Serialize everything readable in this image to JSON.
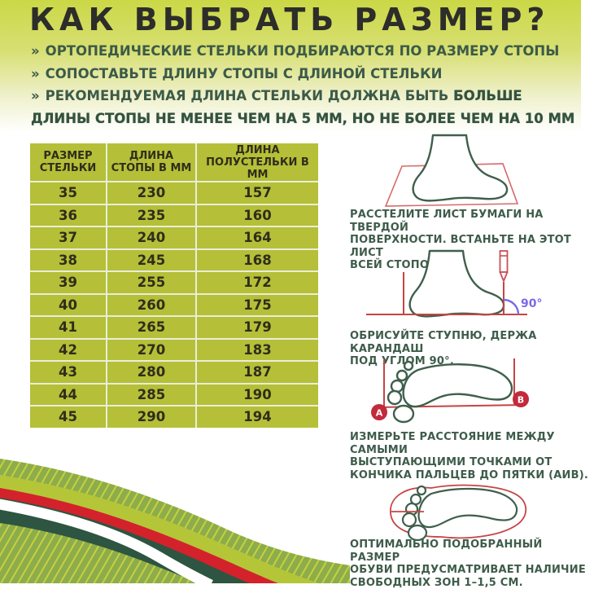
{
  "title": "КАК ВЫБРАТЬ РАЗМЕР?",
  "bullets": [
    {
      "marker": "»",
      "text": "ОРТОПЕДИЧЕСКИЕ СТЕЛЬКИ ПОДБИРАЮТСЯ ПО РАЗМЕРУ СТОПЫ",
      "bold": ""
    },
    {
      "marker": "»",
      "text": "СОПОСТАВЬТЕ ДЛИНУ СТОПЫ С ДЛИНОЙ СТЕЛЬКИ",
      "bold": ""
    },
    {
      "marker": "»",
      "text": "РЕКОМЕНДУЕМАЯ ДЛИНА СТЕЛЬКИ ДОЛЖНА БЫТЬ ",
      "bold": "БОЛЬШЕ ДЛИНЫ СТОПЫ НЕ МЕНЕЕ ЧЕМ НА 5 ММ, НО НЕ БОЛЕЕ ЧЕМ НА 10 ММ"
    }
  ],
  "size_table": {
    "headers": [
      "РАЗМЕР\nСТЕЛЬКИ",
      "ДЛИНА\nСТОПЫ В ММ",
      "ДЛИНА\nПОЛУСТЕЛЬКИ В ММ"
    ],
    "rows": [
      [
        "35",
        "230",
        "157"
      ],
      [
        "36",
        "235",
        "160"
      ],
      [
        "37",
        "240",
        "164"
      ],
      [
        "38",
        "245",
        "168"
      ],
      [
        "39",
        "255",
        "172"
      ],
      [
        "40",
        "260",
        "175"
      ],
      [
        "41",
        "265",
        "179"
      ],
      [
        "42",
        "270",
        "183"
      ],
      [
        "43",
        "280",
        "187"
      ],
      [
        "44",
        "285",
        "190"
      ],
      [
        "45",
        "290",
        "194"
      ]
    ]
  },
  "steps": [
    {
      "icon": "foot-on-paper-icon",
      "text": "РАССТЕЛИТЕ ЛИСТ БУМАГИ НА ТВЕРДОЙ\nПОВЕРХНОСТИ. ВСТАНЬТЕ НА ЭТОТ ЛИСТ\nВСЕЙ СТОПОЙ."
    },
    {
      "icon": "foot-outline-pencil-icon",
      "angle_label": "90°",
      "text": "ОБРИСУЙТЕ СТУПНЮ, ДЕРЖА КАРАНДАШ\nПОД УГЛОМ 90°."
    },
    {
      "icon": "footprint-measure-icon",
      "point_a": "А",
      "point_b": "В",
      "text": "ИЗМЕРЬТЕ РАССТОЯНИЕ МЕЖДУ САМЫМИ\nВЫСТУПАЮЩИМИ ТОЧКАМИ ОТ\nКОНЧИКА ПАЛЬЦЕВ ДО ПЯТКИ (АИВ)."
    },
    {
      "icon": "footprint-insole-icon",
      "text": "ОПТИМАЛЬНО ПОДОБРАННЫЙ РАЗМЕР\nОБУВИ ПРЕДУСМАТРИВАЕТ НАЛИЧИЕ\nСВОБОДНЫХ ЗОН 1–1,5 СМ."
    }
  ],
  "colors": {
    "header_gradient_top": "#cbd846",
    "table_background": "#b5bf38",
    "title_text": "#2d2d2a",
    "green_text": "#3e5c4a",
    "foot_outline": "#3f5f4c",
    "measure_red": "#c64444",
    "badge_red": "#c22a3c",
    "angle_purple": "#7a6ae6",
    "band_red": "#d3222c",
    "band_dark_green": "#2d5541",
    "band_yellow_green": "#b4c637",
    "hatch_green": "#8dac4c"
  }
}
